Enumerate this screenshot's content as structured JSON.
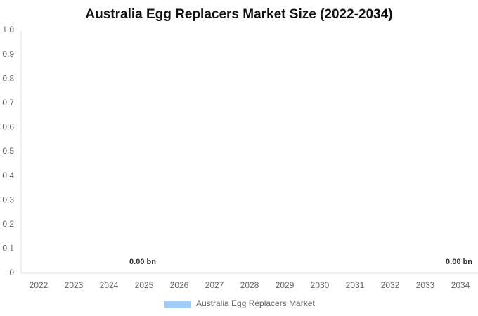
{
  "chart_data": {
    "type": "bar",
    "title": "Australia Egg Replacers Market Size (2022-2034)",
    "categories": [
      "2022",
      "2023",
      "2024",
      "2025",
      "2026",
      "2027",
      "2028",
      "2029",
      "2030",
      "2031",
      "2032",
      "2033",
      "2034"
    ],
    "series": [
      {
        "name": "Australia Egg Replacers Market",
        "color": "#a6cdf5",
        "values": [
          0,
          0,
          0,
          0,
          0,
          0,
          0,
          0,
          0,
          0,
          0,
          0,
          0
        ],
        "value_labels": [
          null,
          null,
          null,
          "0.00 bn",
          null,
          null,
          null,
          null,
          null,
          null,
          null,
          null,
          "0.00 bn"
        ]
      }
    ],
    "ylim": [
      0,
      1
    ],
    "yticks": [
      0,
      0.1,
      0.2,
      0.3,
      0.4,
      0.5,
      0.6,
      0.7,
      0.8,
      0.9,
      {
        "value": 1,
        "label": "1.0"
      }
    ],
    "grid": false,
    "legend": "bottom"
  }
}
